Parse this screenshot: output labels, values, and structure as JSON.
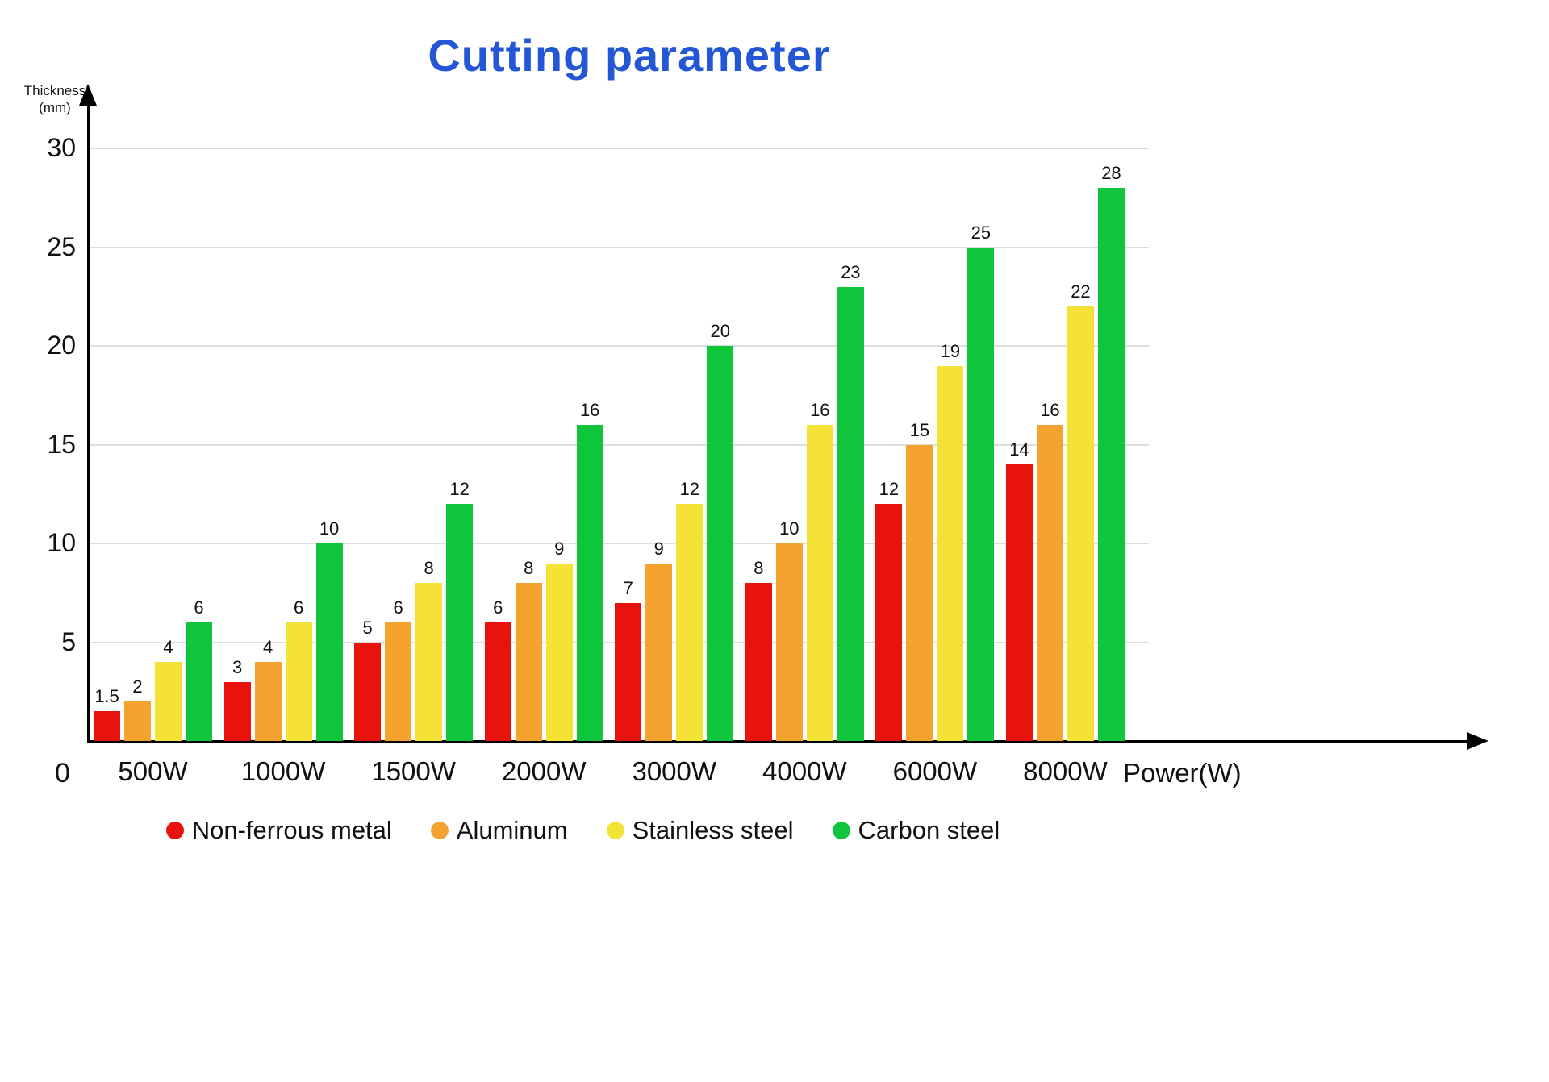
{
  "chart_data": {
    "type": "bar",
    "title": "Cutting parameter",
    "ylabel": "Thickness (mm)",
    "ylabel_lines": [
      "Thickness",
      "(mm)"
    ],
    "xlabel": "Power(W)",
    "origin_label": "0",
    "categories": [
      "500W",
      "1000W",
      "1500W",
      "2000W",
      "3000W",
      "4000W",
      "6000W",
      "8000W"
    ],
    "series": [
      {
        "name": "Non-ferrous metal",
        "color": "#e8130c",
        "values": [
          1.5,
          3,
          5,
          6,
          7,
          8,
          12,
          14
        ]
      },
      {
        "name": "Aluminum",
        "color": "#f5a32f",
        "values": [
          2,
          4,
          6,
          8,
          9,
          10,
          15,
          16
        ]
      },
      {
        "name": "Stainless steel",
        "color": "#f4e236",
        "values": [
          4,
          6,
          8,
          9,
          12,
          16,
          19,
          22
        ]
      },
      {
        "name": "Carbon steel",
        "color": "#0fc53c",
        "values": [
          6,
          10,
          12,
          16,
          20,
          23,
          25,
          28
        ]
      }
    ],
    "ylim": [
      0,
      30
    ],
    "yticks": [
      5,
      10,
      15,
      20,
      25,
      30
    ],
    "grid": true,
    "legend_position": "bottom",
    "colors": {
      "title": "#2457d6",
      "axis": "#000000",
      "grid": "#dedede"
    }
  }
}
